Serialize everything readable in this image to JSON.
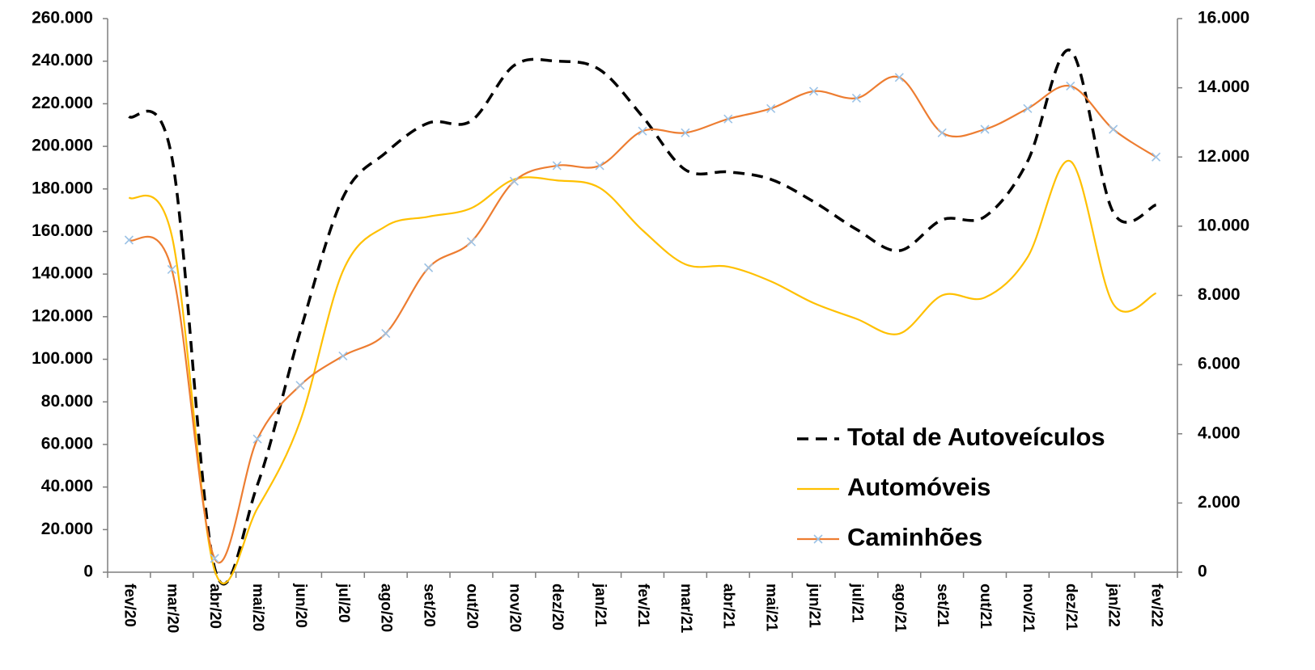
{
  "chart_data": {
    "type": "line",
    "categories": [
      "fev/20",
      "mar/20",
      "abr/20",
      "mai/20",
      "jun/20",
      "jul/20",
      "ago/20",
      "set/20",
      "out/20",
      "nov/20",
      "dez/20",
      "jan/21",
      "fev/21",
      "mar/21",
      "abr/21",
      "mai/21",
      "jun/21",
      "jul/21",
      "ago/21",
      "set/21",
      "out/21",
      "nov/21",
      "dez/21",
      "jan/22",
      "fev/22"
    ],
    "series": [
      {
        "name": "Total de Autoveículos",
        "color": "#000000",
        "dash": "dashed",
        "axis": "y",
        "values": [
          214000,
          195000,
          2000,
          41000,
          113000,
          176000,
          197000,
          211000,
          212000,
          238000,
          240000,
          236000,
          214000,
          189000,
          188000,
          184500,
          174000,
          161000,
          151000,
          165500,
          167000,
          193000,
          245000,
          169000,
          172500
        ]
      },
      {
        "name": "Automóveis",
        "color": "#ffc000",
        "dash": "solid",
        "axis": "y",
        "values": [
          176000,
          158000,
          1000,
          30000,
          71000,
          141500,
          162500,
          167000,
          171000,
          184500,
          184000,
          180500,
          160600,
          144600,
          143500,
          136600,
          126400,
          119000,
          112000,
          130000,
          129000,
          148000,
          193000,
          126000,
          131000
        ]
      },
      {
        "name": "Caminhões",
        "color": "#ed7d31",
        "dash": "solid",
        "axis": "y2",
        "marker": "x",
        "marker_color": "#9dc3e6",
        "values": [
          9600,
          8750,
          400,
          3850,
          5400,
          6250,
          6900,
          8800,
          9550,
          11300,
          11750,
          11750,
          12750,
          12700,
          13100,
          13400,
          13900,
          13700,
          14300,
          12700,
          12800,
          13400,
          14050,
          12800,
          12000
        ]
      }
    ],
    "ylim": [
      0,
      260000
    ],
    "yticks": [
      0,
      {
        "value": 20000,
        "label": "20.000"
      },
      {
        "value": 40000,
        "label": "40.000"
      },
      {
        "value": 60000,
        "label": "60.000"
      },
      {
        "value": 80000,
        "label": "80.000"
      },
      {
        "value": 100000,
        "label": "100.000"
      },
      {
        "value": 120000,
        "label": "120.000"
      },
      {
        "value": 140000,
        "label": "140.000"
      },
      {
        "value": 160000,
        "label": "160.000"
      },
      {
        "value": 180000,
        "label": "180.000"
      },
      {
        "value": 200000,
        "label": "200.000"
      },
      {
        "value": 220000,
        "label": "220.000"
      },
      {
        "value": 240000,
        "label": "240.000"
      },
      {
        "value": 260000,
        "label": "260.000"
      }
    ],
    "y2lim": [
      0,
      16000
    ],
    "y2ticks": [
      0,
      {
        "value": 2000,
        "label": "2.000"
      },
      {
        "value": 4000,
        "label": "4.000"
      },
      {
        "value": 6000,
        "label": "6.000"
      },
      {
        "value": 8000,
        "label": "8.000"
      },
      {
        "value": 10000,
        "label": "10.000"
      },
      {
        "value": 12000,
        "label": "12.000"
      },
      {
        "value": 14000,
        "label": "14.000"
      },
      {
        "value": 16000,
        "label": "16.000"
      }
    ],
    "grid": false,
    "smooth": true,
    "legend": "lower right"
  }
}
